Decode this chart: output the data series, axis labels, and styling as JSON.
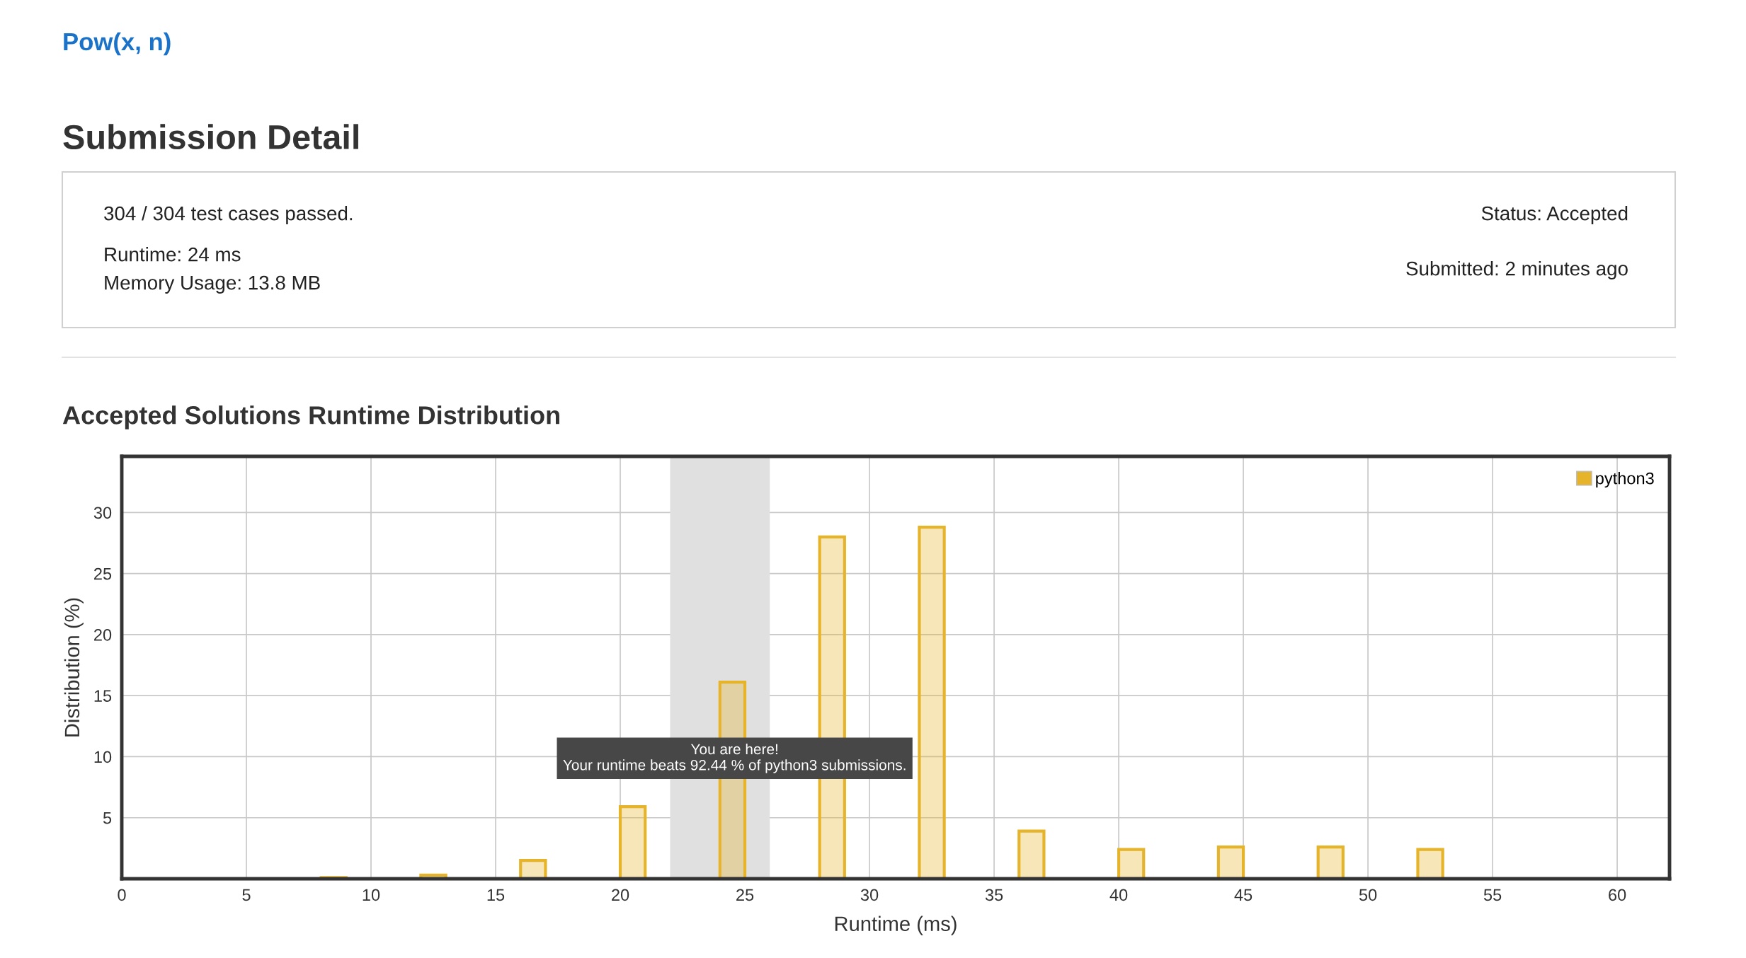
{
  "chart_data": {
    "type": "bar",
    "title": "Accepted Solutions Runtime Distribution",
    "xlabel": "Runtime (ms)",
    "ylabel": "Distribution (%)",
    "x": [
      8.5,
      12.5,
      16.5,
      20.5,
      24.5,
      28.5,
      32.5,
      36.5,
      40.5,
      44.5,
      48.5,
      52.5
    ],
    "series": [
      {
        "name": "python3",
        "color": "#e6b42a",
        "values": [
          0.1,
          0.3,
          1.5,
          5.9,
          16.1,
          28.0,
          28.8,
          3.9,
          2.4,
          2.6,
          2.6,
          2.4
        ]
      }
    ],
    "xlim": [
      0,
      62.1
    ],
    "ylim": [
      0,
      34.6
    ],
    "xticks": [
      0,
      5,
      10,
      15,
      20,
      25,
      30,
      35,
      40,
      45,
      50,
      55,
      60
    ],
    "yticks": [
      5,
      10,
      15,
      20,
      25,
      30
    ],
    "bands": [
      {
        "axis": "x",
        "from": 22,
        "to": 26,
        "color": "#e0e0e0"
      }
    ],
    "grid": true,
    "legend": "top right",
    "annotations": [
      "Pow(x, n)",
      "Submission Detail",
      "304 / 304 test cases passed.",
      "Runtime: 24 ms",
      "Memory Usage: 13.8 MB",
      "Status: Accepted",
      "Submitted: 2 minutes ago",
      "You are here!\nYour runtime beats 92.44 % of python3 submissions."
    ]
  }
}
